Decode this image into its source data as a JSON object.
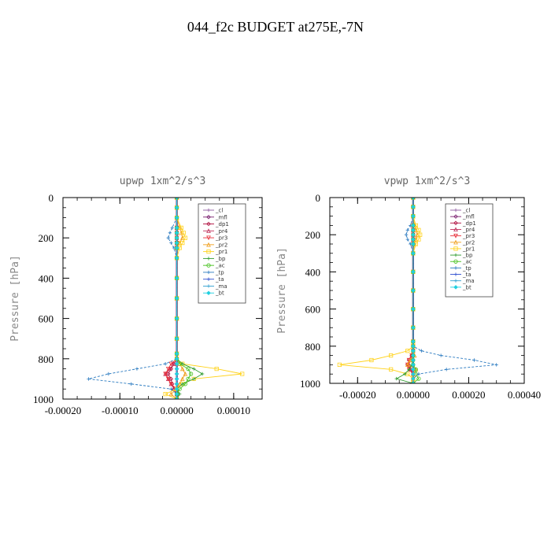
{
  "page": {
    "title": "044_f2c  BUDGET at275E,-7N"
  },
  "colors": {
    "_cl": "#8e5aa0",
    "_mfl": "#7a1f6f",
    "_dp1": "#b01040",
    "_pr4": "#c0305a",
    "_pr3": "#e8303a",
    "_pr2": "#f0a020",
    "_pr1": "#ffd21a",
    "_bp": "#2e9a2e",
    "_ac": "#43c01a",
    "_tp": "#2a7ac0",
    "_ta": "#3050d0",
    "_ma": "#30a0d0",
    "_bt": "#20d0e0"
  },
  "chart_data": [
    {
      "type": "line",
      "title": "upwp   1xm^2/s^3",
      "ylabel": "Pressure [hPa]",
      "xlim": [
        -0.0002,
        0.00015
      ],
      "ylim": [
        1000,
        0
      ],
      "xticks": [
        "-0.00020",
        "-0.00010",
        "0.00000",
        "0.00010"
      ],
      "yticks": [
        "0",
        "200",
        "400",
        "600",
        "800",
        "1000"
      ],
      "legend_position": "top-right",
      "y": [
        0,
        50,
        100,
        150,
        175,
        200,
        225,
        250,
        300,
        400,
        500,
        600,
        700,
        775,
        800,
        825,
        850,
        875,
        900,
        925,
        950,
        975,
        1000
      ],
      "series": [
        {
          "name": "_cl",
          "values": [
            0,
            0,
            0,
            0,
            0,
            0,
            0,
            0,
            0,
            0,
            0,
            0,
            0,
            0,
            0,
            0,
            0,
            0,
            0,
            0,
            0,
            0,
            0
          ]
        },
        {
          "name": "_mfl",
          "values": [
            0,
            0,
            0,
            0,
            0,
            0,
            0,
            0,
            0,
            0,
            0,
            0,
            0,
            0,
            0,
            0,
            0,
            0,
            0,
            0,
            0,
            0,
            0
          ]
        },
        {
          "name": "_dp1",
          "values": [
            0,
            0,
            0,
            0,
            0,
            0,
            0,
            0,
            0,
            0,
            0,
            0,
            0,
            0,
            0,
            -5e-06,
            -1e-05,
            -1.5e-05,
            -1e-05,
            -8e-06,
            -5e-06,
            0,
            0
          ]
        },
        {
          "name": "_pr4",
          "values": [
            0,
            0,
            0,
            0,
            0,
            0,
            0,
            0,
            0,
            0,
            0,
            0,
            0,
            0,
            0,
            -5e-06,
            -1.2e-05,
            -2e-05,
            -1.5e-05,
            -1e-05,
            -5e-06,
            0,
            0
          ]
        },
        {
          "name": "_pr3",
          "values": [
            0,
            0,
            0,
            0,
            0,
            0,
            0,
            0,
            0,
            0,
            0,
            0,
            0,
            0,
            0,
            -1e-05,
            -1.5e-05,
            -2e-05,
            -1.5e-05,
            -1e-05,
            0,
            0,
            0
          ]
        },
        {
          "name": "_pr2",
          "values": [
            0,
            0,
            0,
            5e-06,
            8e-06,
            1e-05,
            5e-06,
            0,
            0,
            0,
            0,
            0,
            0,
            0,
            0,
            5e-06,
            1e-05,
            1.5e-05,
            1e-05,
            5e-06,
            0,
            -1e-05,
            0
          ]
        },
        {
          "name": "_pr1",
          "values": [
            0,
            0,
            0,
            8e-06,
            1.2e-05,
            1.5e-05,
            1e-05,
            5e-06,
            0,
            0,
            0,
            0,
            0,
            0,
            0,
            1e-05,
            7e-05,
            0.000115,
            3e-05,
            1e-05,
            0,
            -2e-05,
            0
          ]
        },
        {
          "name": "_bp",
          "values": [
            0,
            0,
            0,
            0,
            0,
            0,
            0,
            0,
            0,
            0,
            0,
            0,
            0,
            0,
            0,
            1e-05,
            3e-05,
            4.5e-05,
            3e-05,
            1e-05,
            0,
            5e-06,
            0
          ]
        },
        {
          "name": "_ac",
          "values": [
            0,
            0,
            0,
            0,
            0,
            0,
            0,
            0,
            0,
            0,
            0,
            0,
            0,
            0,
            0,
            5e-06,
            2e-05,
            2.5e-05,
            2e-05,
            1.5e-05,
            5e-06,
            0,
            0
          ]
        },
        {
          "name": "_tp",
          "values": [
            0,
            0,
            0,
            -8e-06,
            -1.2e-05,
            -1.5e-05,
            -1e-05,
            -5e-06,
            0,
            0,
            0,
            0,
            0,
            0,
            0,
            -2e-05,
            -7e-05,
            -0.00012,
            -0.000155,
            -8e-05,
            -1e-05,
            0,
            0
          ]
        },
        {
          "name": "_ta",
          "values": [
            0,
            0,
            0,
            0,
            0,
            0,
            0,
            0,
            0,
            0,
            0,
            0,
            0,
            0,
            0,
            0,
            0,
            0,
            0,
            0,
            0,
            0,
            0
          ]
        },
        {
          "name": "_ma",
          "values": [
            0,
            0,
            0,
            0,
            0,
            0,
            0,
            0,
            0,
            0,
            0,
            0,
            0,
            0,
            0,
            0,
            0,
            0,
            0,
            0,
            0,
            0,
            0
          ]
        },
        {
          "name": "_bt",
          "values": [
            0,
            0,
            0,
            0,
            0,
            0,
            0,
            0,
            0,
            0,
            0,
            0,
            0,
            0,
            0,
            0,
            0,
            0,
            0,
            0,
            0,
            0,
            0
          ]
        }
      ]
    },
    {
      "type": "line",
      "title": "vpwp   1xm^2/s^3",
      "ylabel": "Pressure [hPa]",
      "xlim": [
        -0.0003,
        0.0004
      ],
      "ylim": [
        1000,
        0
      ],
      "xticks": [
        "-0.00020",
        "0.00000",
        "0.00020",
        "0.00040"
      ],
      "yticks": [
        "0",
        "200",
        "400",
        "600",
        "800",
        "1000"
      ],
      "legend_position": "top-right",
      "y": [
        0,
        50,
        100,
        150,
        175,
        200,
        225,
        250,
        300,
        400,
        500,
        600,
        700,
        775,
        800,
        825,
        850,
        875,
        900,
        925,
        950,
        975,
        1000
      ],
      "series": [
        {
          "name": "_cl",
          "values": [
            0,
            0,
            0,
            0,
            0,
            0,
            0,
            0,
            0,
            0,
            0,
            0,
            0,
            0,
            0,
            0,
            0,
            0,
            0,
            0,
            0,
            0,
            0
          ]
        },
        {
          "name": "_mfl",
          "values": [
            0,
            0,
            0,
            0,
            0,
            0,
            0,
            0,
            0,
            0,
            0,
            0,
            0,
            0,
            0,
            0,
            0,
            0,
            0,
            0,
            0,
            0,
            0
          ]
        },
        {
          "name": "_dp1",
          "values": [
            0,
            0,
            0,
            0,
            0,
            0,
            0,
            0,
            0,
            0,
            0,
            0,
            0,
            0,
            0,
            0,
            -5e-06,
            -1.5e-05,
            -2e-05,
            -1e-05,
            0,
            0,
            0
          ]
        },
        {
          "name": "_pr4",
          "values": [
            0,
            0,
            0,
            0,
            0,
            0,
            0,
            0,
            0,
            0,
            0,
            0,
            0,
            0,
            0,
            0,
            -5e-06,
            -1e-05,
            -1.5e-05,
            -1e-05,
            0,
            0,
            0
          ]
        },
        {
          "name": "_pr3",
          "values": [
            0,
            0,
            0,
            0,
            0,
            0,
            0,
            0,
            0,
            0,
            0,
            0,
            0,
            0,
            0,
            0,
            -5e-06,
            -1.5e-05,
            -2e-05,
            -1.5e-05,
            0,
            0,
            0
          ]
        },
        {
          "name": "_pr2",
          "values": [
            0,
            0,
            0,
            5e-06,
            1e-05,
            1.5e-05,
            1e-05,
            5e-06,
            0,
            0,
            0,
            0,
            0,
            0,
            0,
            0,
            5e-06,
            -1e-05,
            -2e-05,
            1e-05,
            0,
            0,
            0
          ]
        },
        {
          "name": "_pr1",
          "values": [
            0,
            0,
            0,
            1e-05,
            2e-05,
            2.5e-05,
            2e-05,
            1e-05,
            0,
            0,
            0,
            0,
            0,
            0,
            0,
            -2e-05,
            -8e-05,
            -0.00015,
            -0.000265,
            -8e-05,
            -2e-05,
            0,
            0
          ]
        },
        {
          "name": "_bp",
          "values": [
            0,
            0,
            0,
            0,
            0,
            0,
            0,
            0,
            0,
            0,
            0,
            0,
            0,
            0,
            0,
            0,
            0,
            0,
            -5e-06,
            -1.5e-05,
            -3e-05,
            -6e-05,
            0
          ]
        },
        {
          "name": "_ac",
          "values": [
            0,
            0,
            0,
            0,
            0,
            0,
            0,
            0,
            0,
            0,
            0,
            0,
            0,
            0,
            0,
            0,
            0,
            0,
            0,
            1e-05,
            1e-05,
            2e-05,
            0
          ]
        },
        {
          "name": "_tp",
          "values": [
            0,
            0,
            0,
            -1e-05,
            -2e-05,
            -2.5e-05,
            -2e-05,
            -1e-05,
            0,
            0,
            0,
            0,
            0,
            0,
            0,
            3e-05,
            0.0001,
            0.00022,
            0.0003,
            0.00012,
            2e-05,
            0,
            0
          ]
        },
        {
          "name": "_ta",
          "values": [
            0,
            0,
            0,
            0,
            0,
            0,
            0,
            0,
            0,
            0,
            0,
            0,
            0,
            0,
            0,
            0,
            0,
            0,
            0,
            0,
            0,
            0,
            0
          ]
        },
        {
          "name": "_ma",
          "values": [
            0,
            0,
            0,
            0,
            0,
            0,
            0,
            0,
            0,
            0,
            0,
            0,
            0,
            0,
            0,
            0,
            0,
            0,
            0,
            0,
            0,
            0,
            0
          ]
        },
        {
          "name": "_bt",
          "values": [
            0,
            0,
            0,
            0,
            0,
            0,
            0,
            0,
            0,
            0,
            0,
            0,
            0,
            0,
            0,
            0,
            0,
            0,
            0,
            0,
            0,
            0,
            0
          ]
        }
      ]
    }
  ]
}
